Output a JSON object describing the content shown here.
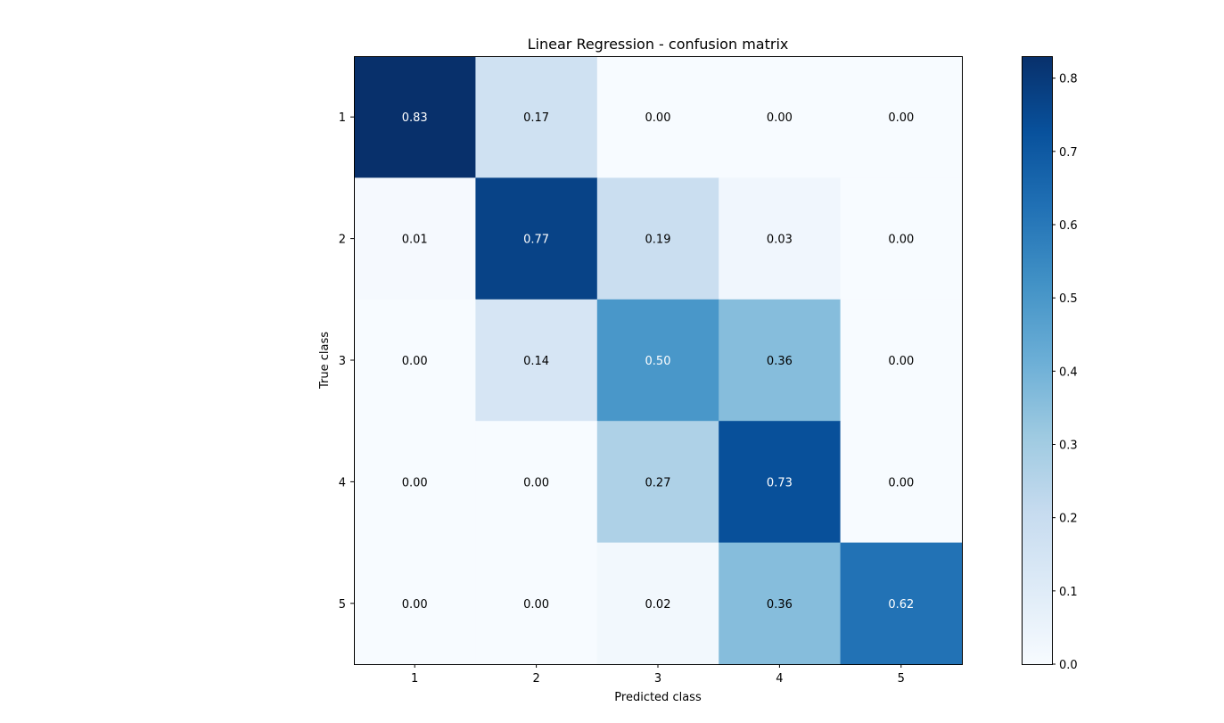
{
  "chart_data": {
    "type": "heatmap",
    "title": "Linear Regression - confusion matrix",
    "xlabel": "Predicted class",
    "ylabel": "True class",
    "x_categories": [
      "1",
      "2",
      "3",
      "4",
      "5"
    ],
    "y_categories": [
      "1",
      "2",
      "3",
      "4",
      "5"
    ],
    "values": [
      [
        0.83,
        0.17,
        0.0,
        0.0,
        0.0
      ],
      [
        0.01,
        0.77,
        0.19,
        0.03,
        0.0
      ],
      [
        0.0,
        0.14,
        0.5,
        0.36,
        0.0
      ],
      [
        0.0,
        0.0,
        0.27,
        0.73,
        0.0
      ],
      [
        0.0,
        0.0,
        0.02,
        0.36,
        0.62
      ]
    ],
    "value_labels": [
      [
        "0.83",
        "0.17",
        "0.00",
        "0.00",
        "0.00"
      ],
      [
        "0.01",
        "0.77",
        "0.19",
        "0.03",
        "0.00"
      ],
      [
        "0.00",
        "0.14",
        "0.50",
        "0.36",
        "0.00"
      ],
      [
        "0.00",
        "0.00",
        "0.27",
        "0.73",
        "0.00"
      ],
      [
        "0.00",
        "0.00",
        "0.02",
        "0.36",
        "0.62"
      ]
    ],
    "colormap": "Blues",
    "colorbar": {
      "range": [
        0,
        0.83
      ],
      "ticks": [
        0.0,
        0.1,
        0.2,
        0.3,
        0.4,
        0.5,
        0.6,
        0.7,
        0.8
      ],
      "tick_labels": [
        "0.0",
        "0.1",
        "0.2",
        "0.3",
        "0.4",
        "0.5",
        "0.6",
        "0.7",
        "0.8"
      ]
    },
    "text_color_dark": "#000000",
    "text_color_light": "#ffffff"
  }
}
